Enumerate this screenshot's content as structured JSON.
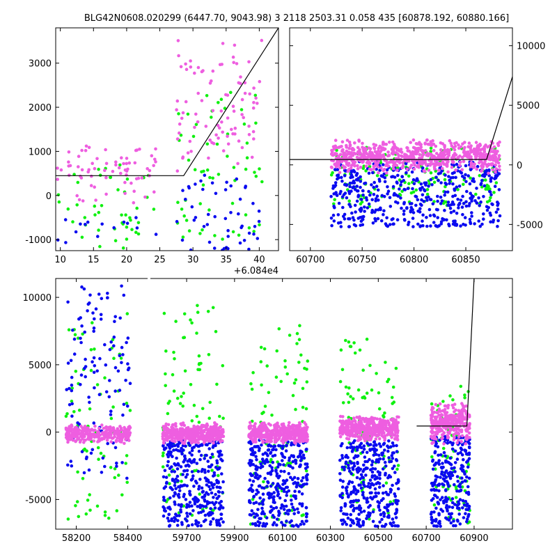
{
  "title": "BLG42N0608.020299 (6447.70, 9043.98)   3 2118 2503.31 0.058 435 [60878.192, 60880.166]",
  "colors": {
    "pink": "#ee5ee0",
    "green": "#10f010",
    "blue": "#0a0af0",
    "line": "#000000"
  },
  "chart_data": [
    {
      "id": "top-left",
      "type": "scatter",
      "title": "",
      "xlabel": "",
      "ylabel": "",
      "offset_label": "+6.084e4",
      "xlim": [
        9.3,
        42.9
      ],
      "ylim": [
        -1250,
        3800
      ],
      "xticks": [
        10,
        15,
        20,
        25,
        30,
        35,
        40
      ],
      "yticks": [
        -1000,
        0,
        1000,
        2000,
        3000
      ],
      "yaxis_side": "left",
      "model_line": {
        "x": [
          9.3,
          28.6,
          42.9
        ],
        "y": [
          450,
          450,
          3800
        ]
      },
      "clusters": [
        {
          "x0": 9.5,
          "x1": 24.5,
          "pink": [
            -300,
            1400,
            70
          ],
          "green": [
            -1200,
            700,
            45
          ],
          "blue": [
            -1250,
            -500,
            15
          ]
        },
        {
          "x0": 27.5,
          "x1": 40.5,
          "pink": [
            300,
            3700,
            90
          ],
          "green": [
            -1100,
            2400,
            60
          ],
          "blue": [
            -1250,
            500,
            50
          ]
        }
      ]
    },
    {
      "id": "top-right",
      "type": "scatter",
      "title": "",
      "xlabel": "",
      "ylabel": "",
      "xlim": [
        60680,
        60895
      ],
      "ylim": [
        -7200,
        11500
      ],
      "xticks": [
        60700,
        60750,
        60800,
        60850
      ],
      "yticks": [
        -5000,
        0,
        5000,
        10000
      ],
      "yaxis_side": "right",
      "model_line": {
        "x": [
          60680,
          60870,
          60895
        ],
        "y": [
          450,
          450,
          7400
        ]
      },
      "clusters": [
        {
          "x0": 60720,
          "x1": 60883,
          "pink": [
            -800,
            2200,
            700
          ],
          "green": [
            -3500,
            1600,
            160
          ],
          "blue": [
            -5200,
            300,
            500
          ]
        }
      ]
    },
    {
      "id": "bottom",
      "type": "scatter",
      "title": "",
      "xlabel": "",
      "ylabel": "",
      "xticks": [
        58200,
        58400,
        59700,
        59900,
        60100,
        60300,
        60500,
        60700,
        60900
      ],
      "yticks": [
        -5000,
        0,
        5000,
        10000
      ],
      "ylim": [
        -7200,
        11400
      ],
      "yaxis_side": "left",
      "segments": [
        {
          "xlim": [
            58120,
            58480
          ]
        },
        {
          "xlim": [
            59540,
            61060
          ]
        }
      ],
      "model_line": {
        "x": [
          60660,
          60870,
          60900
        ],
        "y": [
          450,
          450,
          11400
        ]
      },
      "clusters": [
        {
          "x0": 58160,
          "x1": 58410,
          "pink": [
            -900,
            600,
            300
          ],
          "green": [
            -6500,
            9000,
            70
          ],
          "blue": [
            -3500,
            11000,
            120
          ]
        },
        {
          "x0": 59600,
          "x1": 59855,
          "pink": [
            -900,
            700,
            420
          ],
          "green": [
            -6800,
            9500,
            90
          ],
          "blue": [
            -7000,
            -600,
            350
          ]
        },
        {
          "x0": 59960,
          "x1": 60205,
          "pink": [
            -900,
            800,
            420
          ],
          "green": [
            -7000,
            8000,
            90
          ],
          "blue": [
            -7000,
            -600,
            350
          ]
        },
        {
          "x0": 60340,
          "x1": 60585,
          "pink": [
            -700,
            1300,
            420
          ],
          "green": [
            -7000,
            7000,
            90
          ],
          "blue": [
            -7000,
            -600,
            350
          ]
        },
        {
          "x0": 60720,
          "x1": 60882,
          "pink": [
            -900,
            2200,
            300
          ],
          "green": [
            -7000,
            3500,
            70
          ],
          "blue": [
            -7000,
            -300,
            250
          ]
        }
      ]
    }
  ]
}
